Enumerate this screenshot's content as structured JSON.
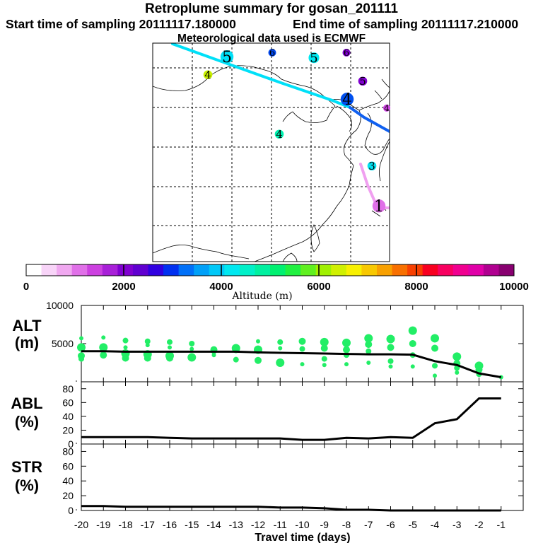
{
  "header": {
    "title": "Retroplume summary for gosan_201111",
    "start_time": "Start time of sampling 20111117.180000",
    "end_time": "End time of sampling 20111117.210000",
    "met_data": "Meteorological data used is ECMWF"
  },
  "colorbar": {
    "label": "Altitude (m)",
    "ticks": [
      "0",
      "2000",
      "4000",
      "6000",
      "8000",
      "10000"
    ],
    "colors": [
      "#ffffff",
      "#f8d4f8",
      "#f0a8f0",
      "#e070e8",
      "#cc40e0",
      "#a820d8",
      "#8000d0",
      "#6000d0",
      "#3000e0",
      "#0030f0",
      "#0070f8",
      "#00a0f8",
      "#00c8f8",
      "#00e8f0",
      "#00f0c8",
      "#00f0a0",
      "#00f070",
      "#20f040",
      "#60f020",
      "#a0f000",
      "#d0f000",
      "#f8f000",
      "#f8c800",
      "#f8a000",
      "#f87000",
      "#f84000",
      "#f80020",
      "#f80060",
      "#f00090",
      "#e000a8",
      "#b00090",
      "#880070"
    ]
  },
  "map": {
    "trajectory_labels": [
      {
        "text": "5",
        "color": "#00e0f8"
      },
      {
        "text": "6",
        "color": "#0048f0"
      },
      {
        "text": "5",
        "color": "#00e8f0"
      },
      {
        "text": "6",
        "color": "#8000d0"
      },
      {
        "text": "4",
        "color": "#c8f000"
      },
      {
        "text": "5",
        "color": "#8000d0"
      },
      {
        "text": "4",
        "color": "#0050f0"
      },
      {
        "text": "4",
        "color": "#00f0b0"
      },
      {
        "text": "3",
        "color": "#00e0f0"
      },
      {
        "text": "1",
        "color": "#e070e8"
      },
      {
        "text": "4",
        "color": "#cc40e0"
      }
    ]
  },
  "chart_data": [
    {
      "type": "scatter",
      "panel": "ALT",
      "ylabel": "ALT (m)",
      "yticks": [
        "10000",
        "5000"
      ],
      "ylim": [
        0,
        10000
      ],
      "x": [
        -20,
        -19,
        -18,
        -17,
        -16,
        -15,
        -14,
        -13,
        -12,
        -11,
        -10,
        -9,
        -8,
        -7,
        -6,
        -5,
        -4,
        -3,
        -2,
        -1
      ],
      "mean_altitude_line": [
        4000,
        4000,
        3950,
        3950,
        3950,
        3950,
        3950,
        3950,
        3850,
        3800,
        3750,
        3700,
        3650,
        3600,
        3600,
        3550,
        2700,
        2200,
        1100,
        600
      ],
      "points": [
        [
          -20,
          5700
        ],
        [
          -20,
          4500
        ],
        [
          -20,
          3400
        ],
        [
          -20,
          3000
        ],
        [
          -19,
          5800
        ],
        [
          -19,
          4500
        ],
        [
          -19,
          3500
        ],
        [
          -18,
          5400
        ],
        [
          -18,
          4500
        ],
        [
          -18,
          3700
        ],
        [
          -18,
          3100
        ],
        [
          -17,
          5300
        ],
        [
          -17,
          4800
        ],
        [
          -17,
          3600
        ],
        [
          -17,
          3100
        ],
        [
          -16,
          5200
        ],
        [
          -16,
          4500
        ],
        [
          -16,
          3400
        ],
        [
          -16,
          3100
        ],
        [
          -15,
          5000
        ],
        [
          -15,
          4300
        ],
        [
          -15,
          3200
        ],
        [
          -14,
          4200
        ],
        [
          -14,
          4000
        ],
        [
          -14,
          3500
        ],
        [
          -13,
          4400
        ],
        [
          -13,
          4200
        ],
        [
          -13,
          2900
        ],
        [
          -12,
          5300
        ],
        [
          -12,
          4200
        ],
        [
          -12,
          2800
        ],
        [
          -11,
          5200
        ],
        [
          -11,
          4400
        ],
        [
          -11,
          2500
        ],
        [
          -10,
          5300
        ],
        [
          -10,
          4300
        ],
        [
          -10,
          2300
        ],
        [
          -9,
          5200
        ],
        [
          -9,
          4400
        ],
        [
          -9,
          3000
        ],
        [
          -9,
          2200
        ],
        [
          -8,
          5100
        ],
        [
          -8,
          4200
        ],
        [
          -8,
          3500
        ],
        [
          -8,
          2300
        ],
        [
          -7,
          5700
        ],
        [
          -7,
          4900
        ],
        [
          -7,
          4000
        ],
        [
          -7,
          2500
        ],
        [
          -6,
          5600
        ],
        [
          -6,
          4500
        ],
        [
          -6,
          2700
        ],
        [
          -6,
          2000
        ],
        [
          -5,
          6700
        ],
        [
          -5,
          5000
        ],
        [
          -5,
          3500
        ],
        [
          -5,
          2000
        ],
        [
          -4,
          5700
        ],
        [
          -4,
          4400
        ],
        [
          -4,
          2100
        ],
        [
          -4,
          800
        ],
        [
          -3,
          3300
        ],
        [
          -3,
          2400
        ],
        [
          -3,
          1800
        ],
        [
          -3,
          1200
        ],
        [
          -2,
          2100
        ],
        [
          -2,
          1600
        ],
        [
          -2,
          1000
        ],
        [
          -1,
          600
        ]
      ]
    },
    {
      "type": "line",
      "panel": "ABL",
      "ylabel": "ABL (%)",
      "yticks": [
        "80",
        "60",
        "40",
        "20",
        "0"
      ],
      "ylim": [
        0,
        90
      ],
      "x": [
        -20,
        -19,
        -18,
        -17,
        -16,
        -15,
        -14,
        -13,
        -12,
        -11,
        -10,
        -9,
        -8,
        -7,
        -6,
        -5,
        -4,
        -3,
        -2,
        -1
      ],
      "values": [
        10,
        10,
        10,
        10,
        9,
        8,
        8,
        8,
        8,
        8,
        6,
        6,
        9,
        8,
        10,
        9,
        30,
        36,
        66,
        66
      ]
    },
    {
      "type": "line",
      "panel": "STR",
      "ylabel": "STR (%)",
      "yticks": [
        "80",
        "60",
        "40",
        "20",
        "0"
      ],
      "ylim": [
        0,
        90
      ],
      "x": [
        -20,
        -19,
        -18,
        -17,
        -16,
        -15,
        -14,
        -13,
        -12,
        -11,
        -10,
        -9,
        -8,
        -7,
        -6,
        -5,
        -4,
        -3,
        -2,
        -1
      ],
      "values": [
        6,
        6,
        5,
        5,
        5,
        5,
        5,
        5,
        5,
        4,
        4,
        3,
        1,
        1,
        0,
        0,
        0,
        0,
        0,
        0
      ]
    },
    {
      "type": "axis",
      "panel": "x-axis",
      "xlabel": "Travel time (days)",
      "xticks": [
        "-20",
        "-19",
        "-18",
        "-17",
        "-16",
        "-15",
        "-14",
        "-13",
        "-12",
        "-11",
        "-10",
        "-9",
        "-8",
        "-7",
        "-6",
        "-5",
        "-4",
        "-3",
        "-2",
        "-1"
      ]
    }
  ]
}
